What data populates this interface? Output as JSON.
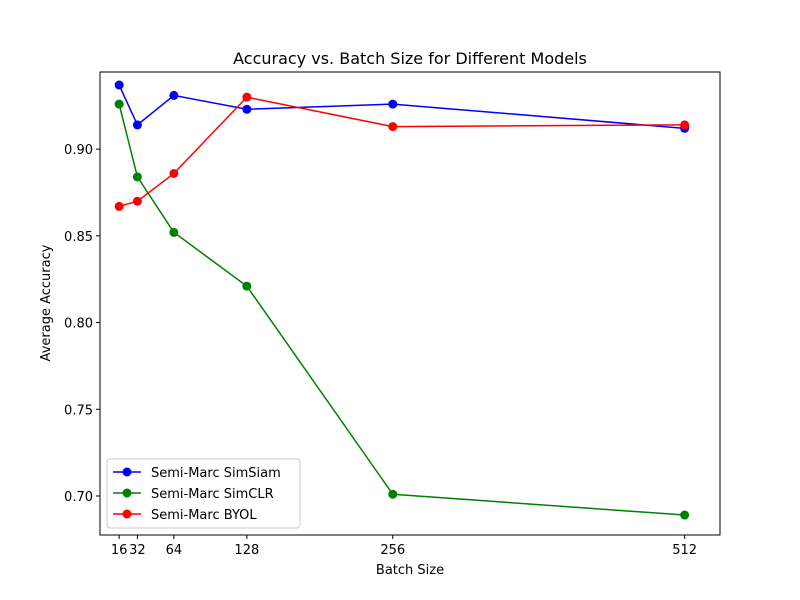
{
  "chart_data": {
    "type": "line",
    "title": "Accuracy vs. Batch Size for Different Models",
    "xlabel": "Batch Size",
    "ylabel": "Average Accuracy",
    "x": [
      16,
      32,
      64,
      128,
      256,
      512
    ],
    "x_ticks": [
      16,
      32,
      64,
      128,
      256,
      512
    ],
    "y_ticks": [
      "0.70",
      "0.75",
      "0.80",
      "0.85",
      "0.90"
    ],
    "xlim": [
      -0.8,
      543
    ],
    "ylim": [
      0.6775,
      0.9445
    ],
    "grid": false,
    "legend_position": "lower-left",
    "series": [
      {
        "name": "Semi-Marc SimSiam",
        "color": "#0000ff",
        "values": [
          0.937,
          0.914,
          0.931,
          0.923,
          0.926,
          0.912
        ]
      },
      {
        "name": "Semi-Marc SimCLR",
        "color": "#008000",
        "values": [
          0.926,
          0.884,
          0.852,
          0.821,
          0.701,
          0.689
        ]
      },
      {
        "name": "Semi-Marc BYOL",
        "color": "#ff0000",
        "values": [
          0.867,
          0.87,
          0.886,
          0.93,
          0.913,
          0.914
        ]
      }
    ]
  }
}
